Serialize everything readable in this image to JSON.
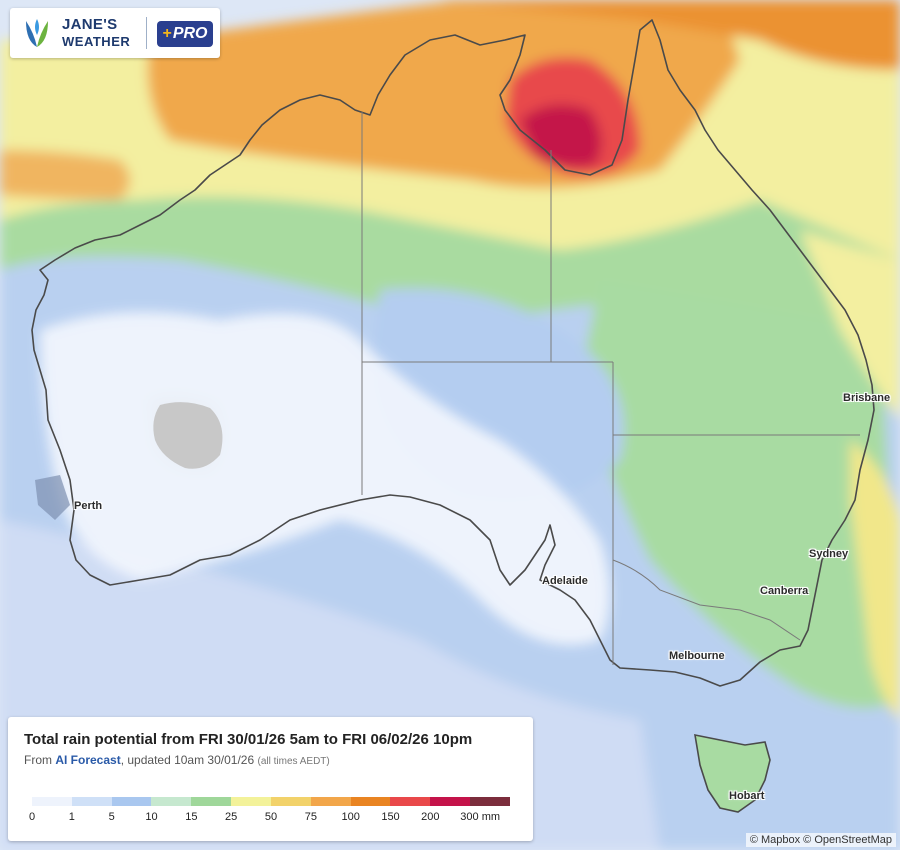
{
  "brand": {
    "line1": "JANE'S",
    "line2": "WEATHER",
    "pro": "PRO",
    "pro_plus": "+"
  },
  "legend": {
    "title": "Total rain potential from FRI 30/01/26 5am to FRI 06/02/26 10pm",
    "from": "From",
    "source": "AI Forecast",
    "updated": ", updated 10am 30/01/26",
    "tz": "(all times AEDT)",
    "ticks": [
      "0",
      "1",
      "5",
      "10",
      "15",
      "25",
      "50",
      "75",
      "100",
      "150",
      "200",
      "300 mm"
    ],
    "colors": [
      "#eef3fc",
      "#cfe0f7",
      "#a9c7ef",
      "#c6e8cf",
      "#9fd79a",
      "#f3f29a",
      "#f2d26a",
      "#f2a64a",
      "#e98422",
      "#e9484a",
      "#c4134a",
      "#7b2d3c"
    ]
  },
  "cities": {
    "perth": "Perth",
    "adelaide": "Adelaide",
    "melbourne": "Melbourne",
    "canberra": "Canberra",
    "sydney": "Sydney",
    "brisbane": "Brisbane",
    "hobart": "Hobart"
  },
  "attribution": "© Mapbox © OpenStreetMap",
  "icons": {
    "logo": "janes-weather-logo-icon"
  }
}
